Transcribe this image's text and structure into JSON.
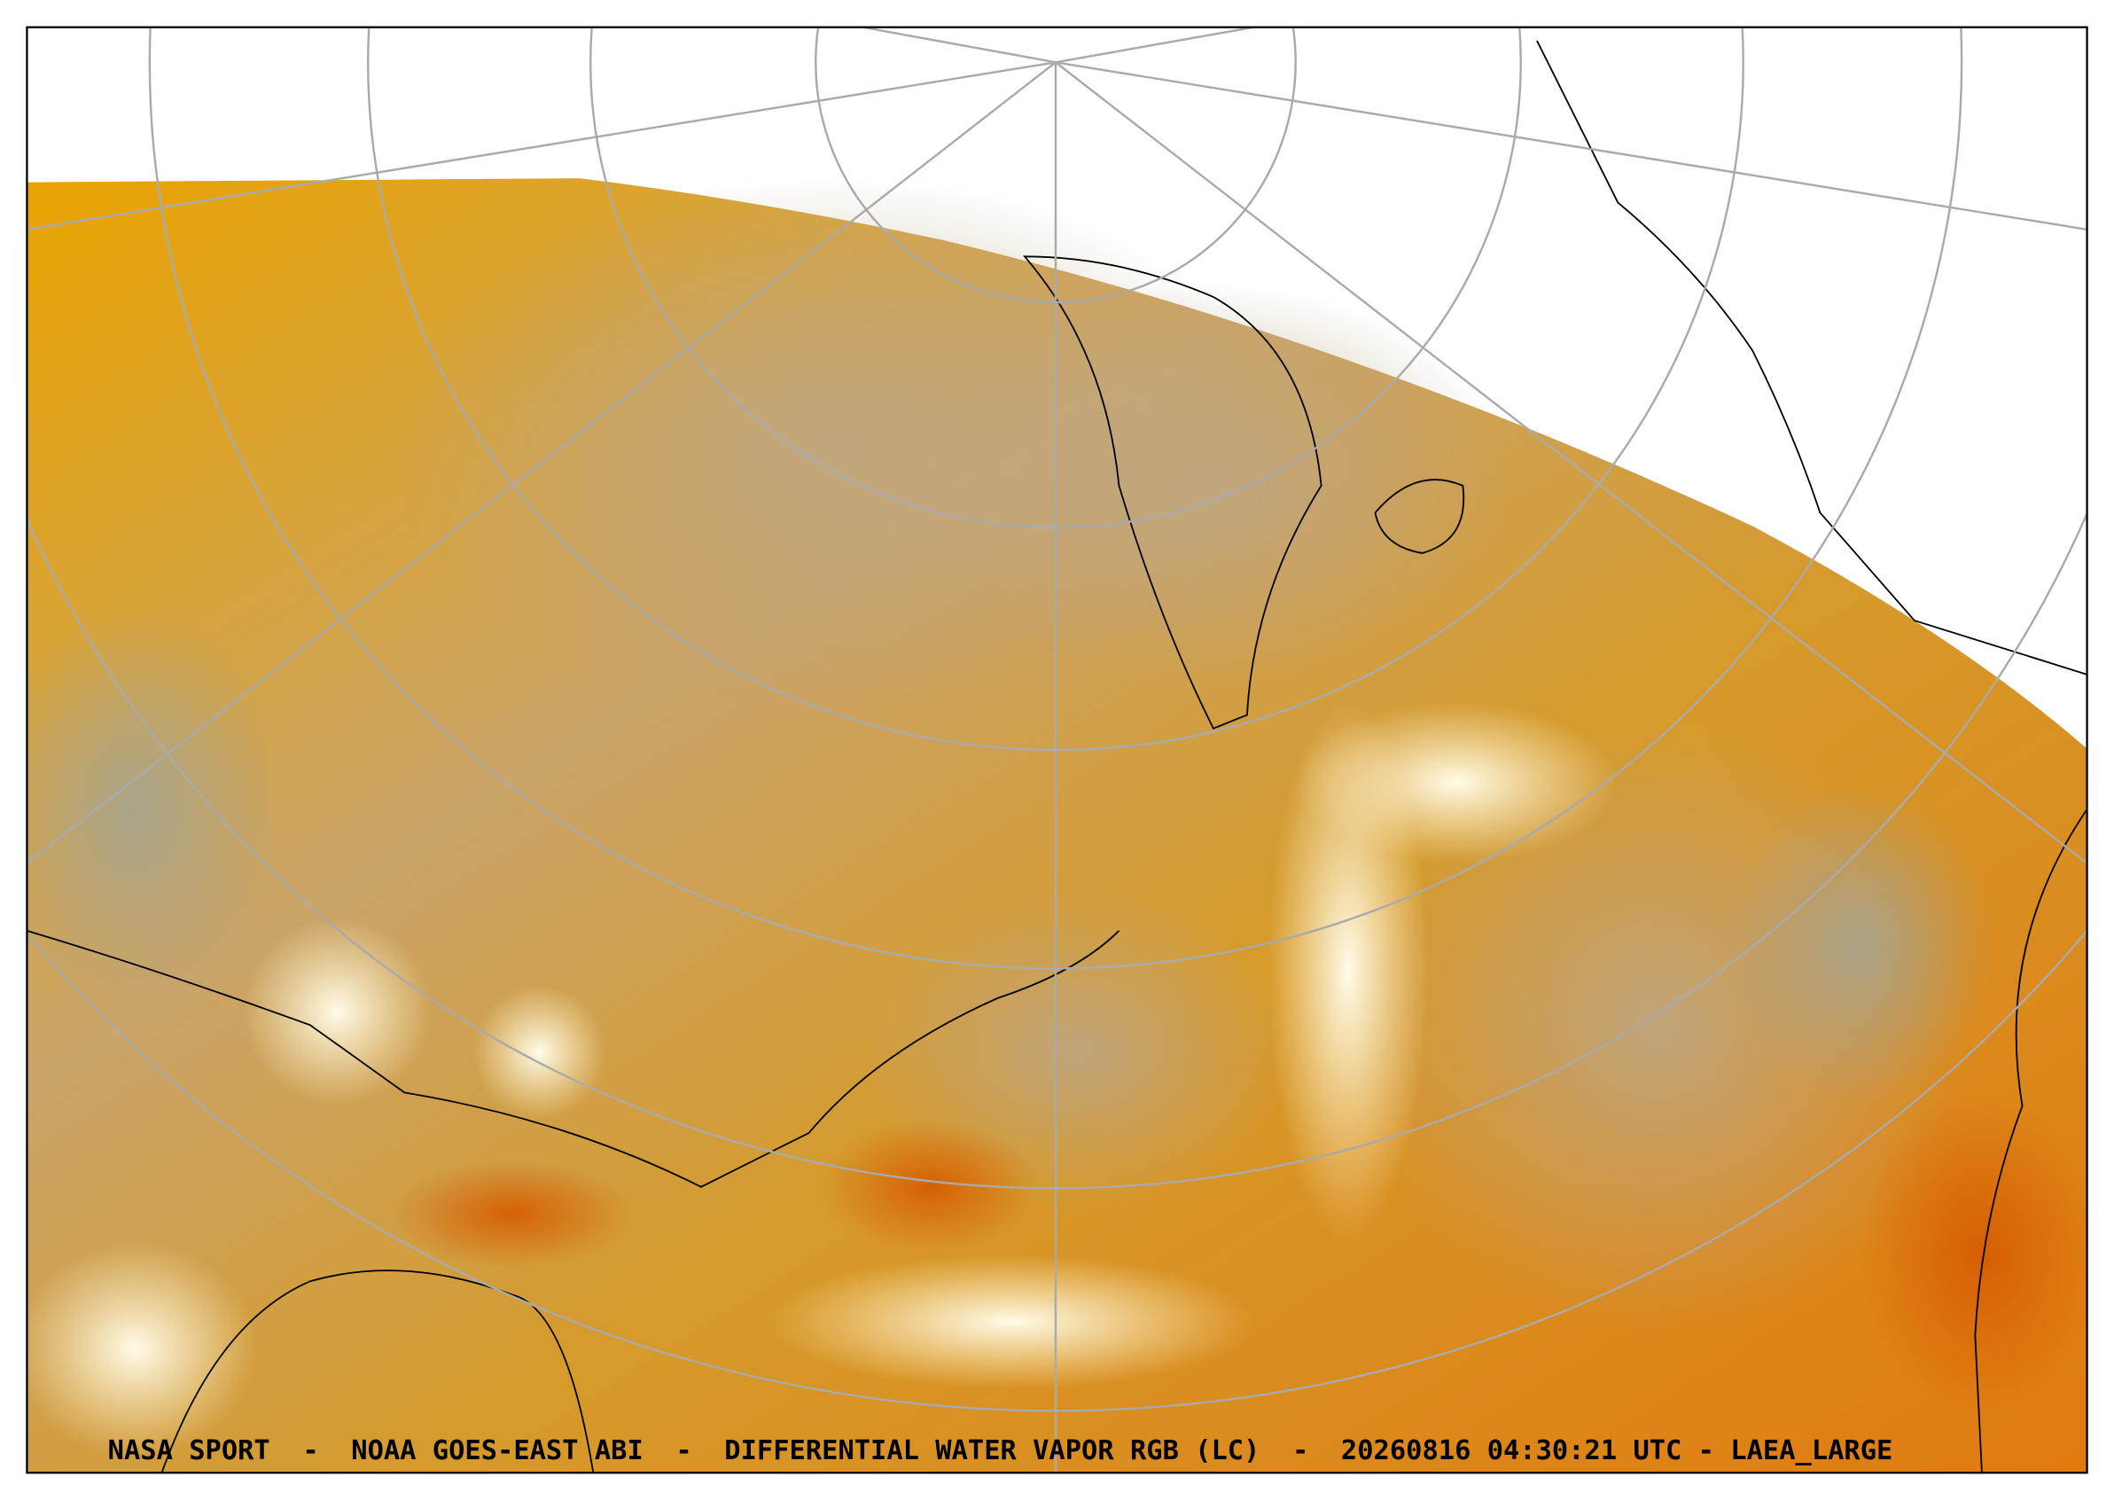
{
  "caption": "NASA SPORT  -  NOAA GOES-EAST ABI  -  DIFFERENTIAL WATER VAPOR RGB (LC)  -  20260816 04:30:21 UTC - LAEA_LARGE"
}
